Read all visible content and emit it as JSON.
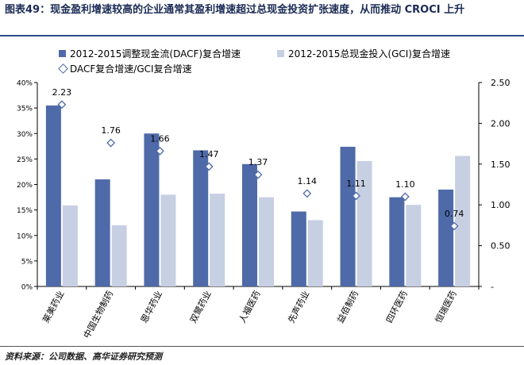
{
  "title": "图表49：现金盈利增速较高的企业通常其盈利增速超过总现金投资扩张速度，从而推动 CROCI 上升",
  "source": "资料来源：公司数据、高华证券研究预测",
  "colors": {
    "dacf": "#4e6aa8",
    "gci": "#c7cfe3",
    "ratio_marker": "#4e6aa8"
  },
  "chart_data": {
    "type": "bar",
    "categories": [
      "莱美药业",
      "中国生物制药",
      "恩华药业",
      "双鹭药业",
      "人福医药",
      "先声药业",
      "益佰制药",
      "四环医药",
      "恒瑞医药"
    ],
    "series": [
      {
        "name": "2012-2015调整现金流(DACF)复合增速",
        "type": "bar",
        "axis": "left",
        "values": [
          0.355,
          0.21,
          0.3,
          0.267,
          0.24,
          0.147,
          0.274,
          0.175,
          0.19
        ]
      },
      {
        "name": "2012-2015总现金投入(GCI)复合增速",
        "type": "bar",
        "axis": "left",
        "values": [
          0.159,
          0.12,
          0.18,
          0.182,
          0.175,
          0.13,
          0.246,
          0.16,
          0.256
        ]
      },
      {
        "name": "DACF复合增速/GCI复合增速",
        "type": "scatter",
        "axis": "right",
        "values": [
          2.23,
          1.76,
          1.66,
          1.47,
          1.37,
          1.14,
          1.11,
          1.1,
          0.74
        ],
        "labels": [
          "2.23",
          "1.76",
          "1.66",
          "1.47",
          "1.37",
          "1.14",
          "1.11",
          "1.10",
          "0.74"
        ]
      }
    ],
    "y_left": {
      "ylim": [
        0,
        0.4
      ],
      "ticks": [
        "0%",
        "5%",
        "10%",
        "15%",
        "20%",
        "25%",
        "30%",
        "35%",
        "40%"
      ]
    },
    "y_right": {
      "ylim": [
        0,
        2.5
      ],
      "ticks": [
        "-",
        "0.50",
        "1.00",
        "1.50",
        "2.00",
        "2.50"
      ]
    },
    "legend_position": "top",
    "grid": false
  }
}
